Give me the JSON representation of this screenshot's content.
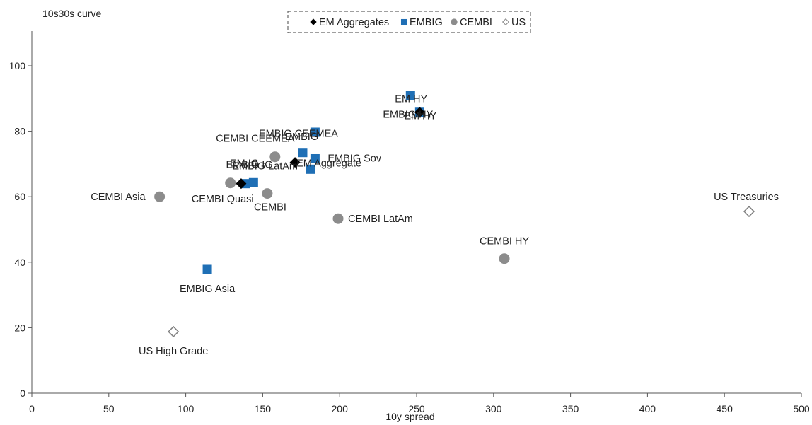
{
  "chart_data": {
    "type": "scatter",
    "xlabel": "10y spread",
    "ylabel": "10s30s curve",
    "xlim": [
      0,
      500
    ],
    "ylim": [
      0,
      110
    ],
    "xticks": [
      0,
      50,
      100,
      150,
      200,
      250,
      300,
      350,
      400,
      450,
      500
    ],
    "yticks": [
      0,
      20,
      40,
      60,
      80,
      100
    ],
    "grid": false,
    "legend_position": "top-center",
    "series": [
      {
        "name": "EM Aggregates",
        "marker": "diamond",
        "color": "#000000",
        "points": [
          {
            "label": "EM Aggregate",
            "x": 171,
            "y": 70.5
          },
          {
            "label": "EM IG",
            "x": 136,
            "y": 64
          },
          {
            "label": "EM HY",
            "x": 252,
            "y": 85.8
          }
        ]
      },
      {
        "name": "EMBIG",
        "marker": "square",
        "color": "#1F6FB5",
        "points": [
          {
            "label": "EM HY",
            "x": 246,
            "y": 91
          },
          {
            "label": "EMBIG HY",
            "x": 252,
            "y": 85.8
          },
          {
            "label": "EMBIG",
            "x": 184,
            "y": 79.7
          },
          {
            "label": "EMBIG CEEMEA",
            "x": 176,
            "y": 73.5
          },
          {
            "label": "EMBIG Sov",
            "x": 184,
            "y": 71.6
          },
          {
            "label": "",
            "x": 181,
            "y": 68.4
          },
          {
            "label": "EMBIG IG",
            "x": 139,
            "y": 64
          },
          {
            "label": "EMBIG LatAm",
            "x": 144,
            "y": 64.3
          },
          {
            "label": "EMBIG Asia",
            "x": 114,
            "y": 37.8
          }
        ]
      },
      {
        "name": "CEMBI",
        "marker": "circle",
        "color": "#8C8C8C",
        "points": [
          {
            "label": "CEMBI CEEMEA",
            "x": 158,
            "y": 72.2
          },
          {
            "label": "CEMBI Quasi",
            "x": 129,
            "y": 64.2
          },
          {
            "label": "CEMBI",
            "x": 153,
            "y": 61
          },
          {
            "label": "CEMBI Asia",
            "x": 83,
            "y": 60
          },
          {
            "label": "CEMBI LatAm",
            "x": 199,
            "y": 53.3
          },
          {
            "label": "CEMBI HY",
            "x": 307,
            "y": 41.1
          }
        ]
      },
      {
        "name": "US",
        "marker": "open-diamond",
        "color": "#808080",
        "points": [
          {
            "label": "US Treasuries",
            "x": 466,
            "y": 55.5
          },
          {
            "label": "US High Grade",
            "x": 92,
            "y": 18.8
          }
        ]
      }
    ]
  }
}
